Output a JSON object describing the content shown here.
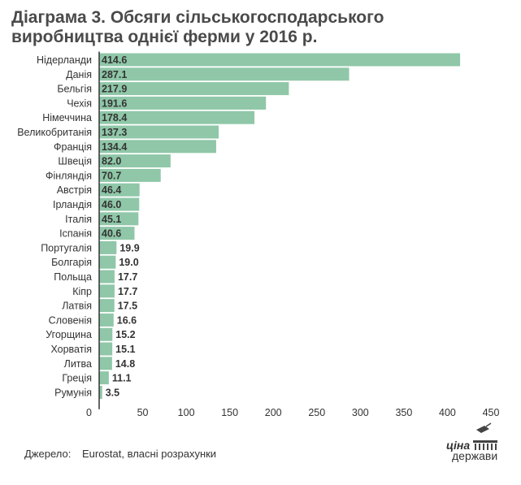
{
  "title": "Діаграма 3. Обсяги сільськогосподарського виробництва однієї ферми у 2016 р.",
  "source_label": "Джерело:",
  "source_value": "Eurostat, власні розрахунки",
  "logo": {
    "line1": "ціна",
    "line2": "держави"
  },
  "colors": {
    "bar": "#8fc7a8",
    "text": "#333333",
    "axis": "#333333",
    "title": "#4a4a4a"
  },
  "chart_data": {
    "type": "bar",
    "orientation": "horizontal",
    "title": "Діаграма 3. Обсяги сільськогосподарського виробництва однієї ферми у 2016 р.",
    "xlabel": "",
    "ylabel": "",
    "xlim": [
      0,
      450
    ],
    "xticks": [
      0,
      50,
      100,
      150,
      200,
      250,
      300,
      350,
      400,
      450
    ],
    "grid": false,
    "categories": [
      "Нідерланди",
      "Данія",
      "Бельгія",
      "Чехія",
      "Німеччина",
      "Великобританія",
      "Франція",
      "Швеція",
      "Фінляндія",
      "Австрія",
      "Ірландія",
      "Італія",
      "Іспанія",
      "Португалія",
      "Болгарія",
      "Польща",
      "Кіпр",
      "Латвія",
      "Словенія",
      "Угорщина",
      "Хорватія",
      "Литва",
      "Греція",
      "Румунія"
    ],
    "values": [
      414.6,
      287.1,
      217.9,
      191.6,
      178.4,
      137.3,
      134.4,
      82.0,
      70.7,
      46.4,
      46.0,
      45.1,
      40.6,
      19.9,
      19.0,
      17.7,
      17.7,
      17.5,
      16.6,
      15.2,
      15.1,
      14.8,
      11.1,
      3.5
    ],
    "value_labels": [
      "414.6",
      "287.1",
      "217.9",
      "191.6",
      "178.4",
      "137.3",
      "134.4",
      "82.0",
      "70.7",
      "46.4",
      "46.0",
      "45.1",
      "40.6",
      "19.9",
      "19.0",
      "17.7",
      "17.7",
      "17.5",
      "16.6",
      "15.2",
      "15.1",
      "14.8",
      "11.1",
      "3.5"
    ]
  }
}
